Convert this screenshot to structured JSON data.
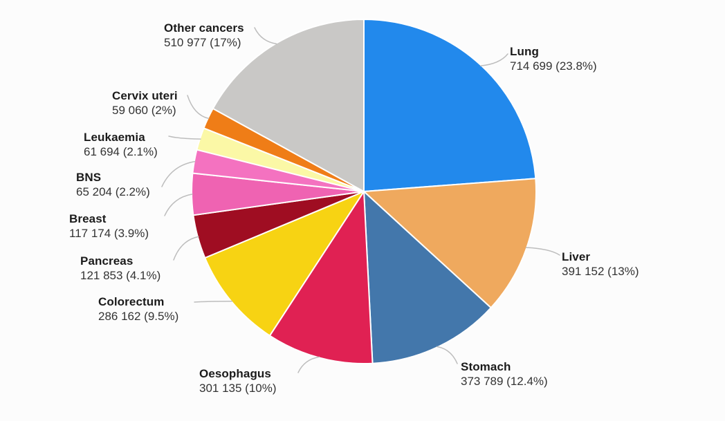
{
  "chart_data": {
    "type": "pie",
    "title": "",
    "legend": "none",
    "label_style": "outside-callouts",
    "start_angle_deg": 0,
    "direction": "clockwise",
    "background_color": "#fcfcfc",
    "slice_border_color": "#ffffff",
    "callout_line_color": "#bdbdbd",
    "slices": [
      {
        "label": "Lung",
        "value": 714699,
        "pct": 23.8,
        "value_label": "714 699 (23.8%)",
        "color": "#2289ec"
      },
      {
        "label": "Liver",
        "value": 391152,
        "pct": 13.0,
        "value_label": "391 152 (13%)",
        "color": "#efa95e"
      },
      {
        "label": "Stomach",
        "value": 373789,
        "pct": 12.4,
        "value_label": "373 789 (12.4%)",
        "color": "#4377ab"
      },
      {
        "label": "Oesophagus",
        "value": 301135,
        "pct": 10.0,
        "value_label": "301 135 (10%)",
        "color": "#e02153"
      },
      {
        "label": "Colorectum",
        "value": 286162,
        "pct": 9.5,
        "value_label": "286 162 (9.5%)",
        "color": "#f7d313"
      },
      {
        "label": "Pancreas",
        "value": 121853,
        "pct": 4.1,
        "value_label": "121 853 (4.1%)",
        "color": "#9f0d22"
      },
      {
        "label": "Breast",
        "value": 117174,
        "pct": 3.9,
        "value_label": "117 174 (3.9%)",
        "color": "#ef63b2"
      },
      {
        "label": "BNS",
        "value": 65204,
        "pct": 2.2,
        "value_label": "65 204 (2.2%)",
        "color": "#f472c0"
      },
      {
        "label": "Leukaemia",
        "value": 61694,
        "pct": 2.1,
        "value_label": "61 694 (2.1%)",
        "color": "#fbf8a6"
      },
      {
        "label": "Cervix uteri",
        "value": 59060,
        "pct": 2.0,
        "value_label": "59 060 (2%)",
        "color": "#ef7d17"
      },
      {
        "label": "Other cancers",
        "value": 510977,
        "pct": 17.0,
        "value_label": "510 977 (17%)",
        "color": "#c9c8c6"
      }
    ]
  }
}
